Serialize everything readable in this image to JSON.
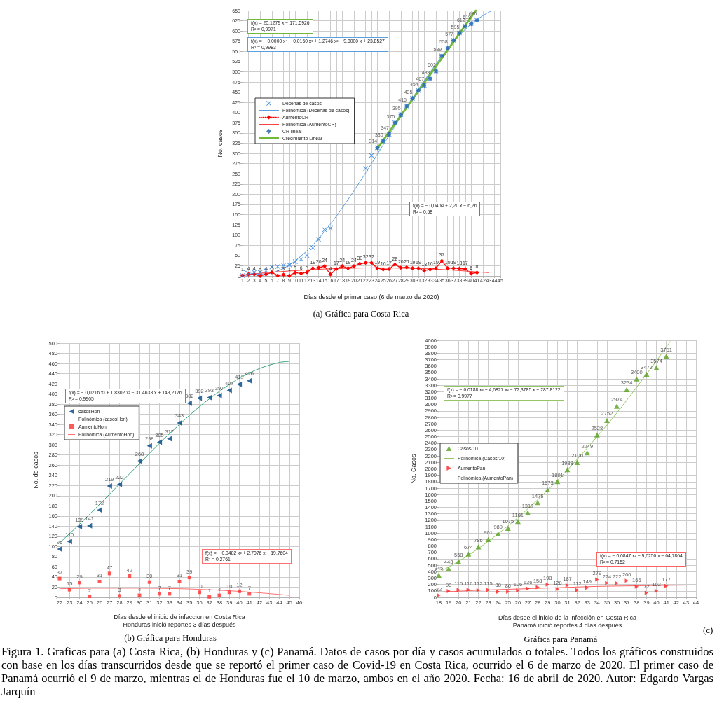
{
  "chart_data": [
    {
      "type": "scatter",
      "title": "(a) Gráfica para Costa Rica",
      "xlabel": "Días desde el primer caso (6 de marzo de 2020)",
      "ylabel": "No. casos",
      "annotations": [
        "f(x) = 20,1279 x − 171,5926\nR² = 0,9971",
        "f(x) = − 0,0000 x⁴ − 0,0160 x³ + 1,2746 x² − 9,8000 x + 23,8527\nR² = 0,9983",
        "f(x) = − 0,04 x² + 2,20 x − 6,26\nR² = 0,58"
      ],
      "xlim": [
        1,
        45
      ],
      "xticks": [
        1,
        2,
        3,
        4,
        5,
        6,
        7,
        8,
        9,
        10,
        11,
        12,
        13,
        14,
        15,
        16,
        17,
        18,
        19,
        20,
        21,
        22,
        23,
        24,
        25,
        26,
        27,
        28,
        29,
        30,
        31,
        32,
        33,
        34,
        35,
        36,
        37,
        38,
        39,
        40,
        41,
        42,
        43,
        44,
        45
      ],
      "ylim": [
        0,
        650
      ],
      "yticks": [
        0,
        25,
        50,
        75,
        100,
        125,
        150,
        175,
        200,
        225,
        250,
        275,
        300,
        325,
        350,
        375,
        400,
        425,
        450,
        475,
        500,
        525,
        550,
        575,
        600,
        625,
        650
      ],
      "grid": true,
      "legend": "left",
      "x": [
        1,
        2,
        3,
        4,
        5,
        6,
        7,
        8,
        9,
        10,
        11,
        12,
        13,
        14,
        15,
        16,
        17,
        18,
        19,
        20,
        21,
        22,
        23,
        24,
        25,
        26,
        27,
        28,
        29,
        30,
        31,
        32,
        33,
        34,
        35,
        36,
        37,
        38,
        39,
        40,
        41
      ],
      "series": [
        {
          "name": "Decenas de casos",
          "color": "#2f7ed8",
          "marker": "cross",
          "values": [
            1,
            5,
            9,
            9,
            13,
            22,
            23,
            26,
            27,
            35,
            41,
            50,
            69,
            89,
            113,
            117,
            null,
            null,
            null,
            null,
            null,
            263,
            295,
            314,
            330,
            347,
            375,
            395,
            416,
            435,
            454,
            467,
            483,
            502,
            539,
            558,
            577,
            595,
            612,
            618,
            626
          ]
        },
        {
          "name": "Polinómica (Decenas de casos)",
          "type": "line",
          "color": "#5a9fe0",
          "marker": "none",
          "x": [
            1,
            3,
            5,
            7,
            9,
            11,
            13,
            15,
            17,
            19,
            21,
            23,
            25,
            27,
            29,
            31,
            33,
            35,
            37,
            39,
            41,
            43,
            43.5
          ],
          "values": [
            15,
            5,
            5,
            12,
            27,
            49,
            76,
            109,
            146,
            187,
            230,
            275,
            321,
            367,
            413,
            457,
            499,
            538,
            573,
            604,
            628,
            646,
            649
          ]
        },
        {
          "name": "AumentoCR",
          "type": "line",
          "color": "#ff0000",
          "marker": "diamond",
          "line_style": "dotted",
          "data_labels": true,
          "values": [
            1,
            4,
            4,
            0,
            4,
            9,
            1,
            3,
            1,
            8,
            6,
            9,
            19,
            20,
            24,
            4,
            17,
            24,
            19,
            24,
            30,
            32,
            32,
            19,
            16,
            17,
            28,
            20,
            21,
            19,
            19,
            13,
            16,
            19,
            37,
            19,
            19,
            18,
            17,
            6,
            8
          ]
        },
        {
          "name": "Polinómica (AumentoCR)",
          "type": "line",
          "color": "#ff4040",
          "marker": "none",
          "x": [
            1,
            5,
            10,
            15,
            20,
            24,
            28,
            32,
            36,
            40,
            43
          ],
          "values": [
            2,
            8,
            13,
            17,
            19,
            20,
            19,
            18,
            15,
            11,
            8
          ]
        },
        {
          "name": "CR lineal",
          "color": "#1b5aa3",
          "marker": "diamond",
          "data_labels": true,
          "x": [
            24,
            25,
            26,
            27,
            28,
            29,
            30,
            31,
            32,
            33,
            34,
            35,
            36,
            37,
            38,
            39,
            40,
            41
          ],
          "values": [
            314,
            330,
            347,
            375,
            395,
            416,
            435,
            454,
            467,
            483,
            502,
            539,
            558,
            577,
            595,
            612,
            618,
            626
          ]
        },
        {
          "name": "Crecimiento Lineal",
          "type": "line",
          "color": "#72b83a",
          "marker": "none",
          "x": [
            24,
            40.8
          ],
          "values": [
            312,
            650
          ]
        }
      ]
    },
    {
      "type": "scatter",
      "title": "(b) Gráfica para Honduras",
      "xlabel": "Días desde el inicio de infeccion en Costa Rica\nHonduras inició reportes 3 días después",
      "ylabel": "No. de casos",
      "annotations": [
        "f(x) = − 0,0216 x³ + 1,8302 x² − 31,4638 x + 143,2176\nR² = 0,9905",
        "f(x) = − 0,0482 x² + 2,7076 x − 19,7604\nR² = 0,2761"
      ],
      "xlim": [
        22,
        46
      ],
      "xticks": [
        22,
        23,
        24,
        25,
        26,
        27,
        28,
        29,
        30,
        31,
        32,
        33,
        34,
        35,
        36,
        37,
        38,
        39,
        40,
        41,
        42,
        43,
        44,
        45,
        46
      ],
      "ylim": [
        0,
        500
      ],
      "yticks": [
        0,
        20,
        40,
        60,
        80,
        100,
        120,
        140,
        160,
        180,
        200,
        220,
        240,
        260,
        280,
        300,
        320,
        340,
        360,
        380,
        400,
        420,
        440,
        460,
        480,
        500
      ],
      "grid": true,
      "legend": "left",
      "x": [
        22,
        23,
        24,
        25,
        26,
        27,
        28,
        29,
        30,
        31,
        32,
        33,
        34,
        35,
        36,
        37,
        38,
        39,
        40,
        41
      ],
      "series": [
        {
          "name": "casosHon",
          "color": "#004586",
          "marker": "triangle",
          "data_labels": true,
          "values": [
            95,
            110,
            139,
            141,
            172,
            219,
            222,
            null,
            268,
            298,
            305,
            312,
            343,
            382,
            392,
            393,
            397,
            407,
            419,
            426
          ]
        },
        {
          "name": "Polinómica (casosHon)",
          "type": "line",
          "color": "#3aa57d",
          "marker": "none",
          "x": [
            22,
            24,
            26,
            28,
            30,
            32,
            34,
            36,
            38,
            40,
            42,
            44,
            45
          ],
          "values": [
            107,
            144,
            183,
            223,
            263,
            303,
            340,
            375,
            405,
            431,
            450,
            462,
            464
          ]
        },
        {
          "name": "AumentoHon",
          "color": "#ff3030",
          "marker": "square",
          "data_labels": true,
          "values": [
            37,
            15,
            29,
            2,
            31,
            47,
            3,
            42,
            4,
            30,
            7,
            7,
            31,
            39,
            10,
            1,
            4,
            10,
            12,
            7
          ]
        },
        {
          "name": "Polinómica (AumentoHon)",
          "type": "line",
          "color": "#ff7070",
          "marker": "none",
          "x": [
            22,
            26,
            30,
            34,
            38,
            42,
            45
          ],
          "values": [
            17,
            18,
            18,
            17,
            14,
            9,
            4
          ]
        }
      ]
    },
    {
      "type": "scatter",
      "title": "Gráfica para Panamá",
      "xlabel": "Días desde el inicio de la infección en Costa Rica\nPanamá inició reportes 4 días después",
      "ylabel": "No. Casos",
      "annotations": [
        "f(x) = − 0,0188 x³ + 4,6827 x² − 72,3785 x + 287,8122\nR² = 0,9977",
        "f(x) = − 0,0847 x² + 9,6250 x − 64,7864\nR² = 0,7152",
        "(c)"
      ],
      "xlim": [
        18,
        44
      ],
      "xticks": [
        18,
        19,
        20,
        21,
        22,
        23,
        24,
        25,
        26,
        27,
        28,
        29,
        30,
        31,
        32,
        33,
        34,
        35,
        36,
        37,
        38,
        39,
        40,
        41,
        42,
        43,
        44
      ],
      "ylim": [
        0,
        4000
      ],
      "yticks": [
        0,
        100,
        200,
        300,
        400,
        500,
        600,
        700,
        800,
        900,
        1000,
        1100,
        1200,
        1300,
        1400,
        1500,
        1600,
        1700,
        1800,
        1900,
        2000,
        2100,
        2200,
        2300,
        2400,
        2500,
        2600,
        2700,
        2800,
        2900,
        3000,
        3100,
        3200,
        3300,
        3400,
        3500,
        3600,
        3700,
        3800,
        3900,
        4000
      ],
      "grid": true,
      "legend": "left",
      "x": [
        18,
        19,
        20,
        21,
        22,
        23,
        24,
        25,
        26,
        27,
        28,
        29,
        30,
        31,
        32,
        33,
        34,
        35,
        36,
        37,
        38,
        39,
        40,
        41
      ],
      "series": [
        {
          "name": "Casos/10",
          "color": "#57a01e",
          "marker": "triangle",
          "data_labels": true,
          "values": [
            345,
            443,
            558,
            674,
            786,
            901,
            989,
            1075,
            1181,
            1317,
            1475,
            1673,
            1801,
            1988,
            2100,
            2249,
            2528,
            2752,
            2974,
            3234,
            3400,
            3472,
            3574,
            3751
          ]
        },
        {
          "name": "Polinómica (Casos/10)",
          "type": "line",
          "color": "#94c764",
          "marker": "none",
          "x": [
            18,
            20,
            22,
            24,
            26,
            28,
            30,
            32,
            34,
            36,
            38,
            40,
            41,
            41.4
          ],
          "values": [
            390,
            560,
            760,
            990,
            1240,
            1520,
            1820,
            2150,
            2500,
            2870,
            3270,
            3680,
            3900,
            3980
          ]
        },
        {
          "name": "AumentoPan",
          "color": "#ff2020",
          "marker": "triangle",
          "data_labels": true,
          "values": [
            32,
            98,
            115,
            116,
            112,
            115,
            88,
            86,
            106,
            136,
            158,
            198,
            128,
            187,
            112,
            149,
            279,
            224,
            222,
            260,
            166,
            72,
            102,
            177
          ]
        },
        {
          "name": "Polinómica (AumentoPan)",
          "type": "line",
          "color": "#ff6060",
          "marker": "none",
          "x": [
            18,
            22,
            26,
            30,
            34,
            38,
            43
          ],
          "values": [
            80,
            110,
            130,
            150,
            170,
            180,
            190
          ]
        }
      ]
    },
    {
      "type": "other",
      "annotations": [
        "Figura 1. Graficas para (a) Costa Rica, (b) Honduras y (c) Panamá. Datos de casos por día y casos acumulados o totales. Todos los gráficos construidos con base en los días transcurridos desde que se reportó el primer caso de Covid-19 en Costa Rica, ocurrido el 6 de marzo de 2020. El primer caso de Panamá ocurrió el 9 de marzo, mientras el de Honduras fue el 10 de marzo, ambos en el año 2020. Fecha: 16 de abril de 2020. Autor: Edgardo Vargas Jarquín"
      ]
    }
  ]
}
